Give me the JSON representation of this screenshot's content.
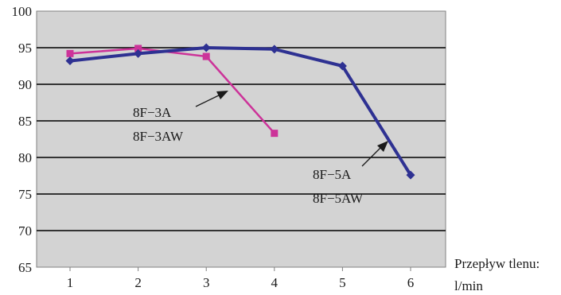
{
  "chart_data": {
    "type": "line",
    "title": "",
    "x": [
      1,
      2,
      3,
      4,
      5,
      6
    ],
    "xlabel": [
      "Przepływ tlenu:",
      "l/min"
    ],
    "ylabel": "",
    "ylim": [
      65,
      100
    ],
    "xlim": [
      1,
      6
    ],
    "yticks": [
      65,
      70,
      75,
      80,
      85,
      90,
      95,
      100
    ],
    "xticks": [
      1,
      2,
      3,
      4,
      5,
      6
    ],
    "grid": "horizontal",
    "plot_background": "#d3d3d3",
    "series": [
      {
        "key": "3a",
        "color": "#cc3399",
        "marker": "square",
        "points": [
          [
            1,
            94.2
          ],
          [
            2,
            94.9
          ],
          [
            3,
            93.8
          ],
          [
            4,
            83.3
          ]
        ],
        "labels": [
          "8F−3A",
          "8F−3AW"
        ]
      },
      {
        "key": "5a",
        "color": "#2e3192",
        "marker": "diamond",
        "points": [
          [
            1,
            93.2
          ],
          [
            2,
            94.2
          ],
          [
            3,
            95.0
          ],
          [
            4,
            94.8
          ],
          [
            5,
            92.5
          ],
          [
            6,
            77.6
          ]
        ],
        "labels": [
          "8F−5A",
          "8F−5AW"
        ]
      }
    ]
  }
}
